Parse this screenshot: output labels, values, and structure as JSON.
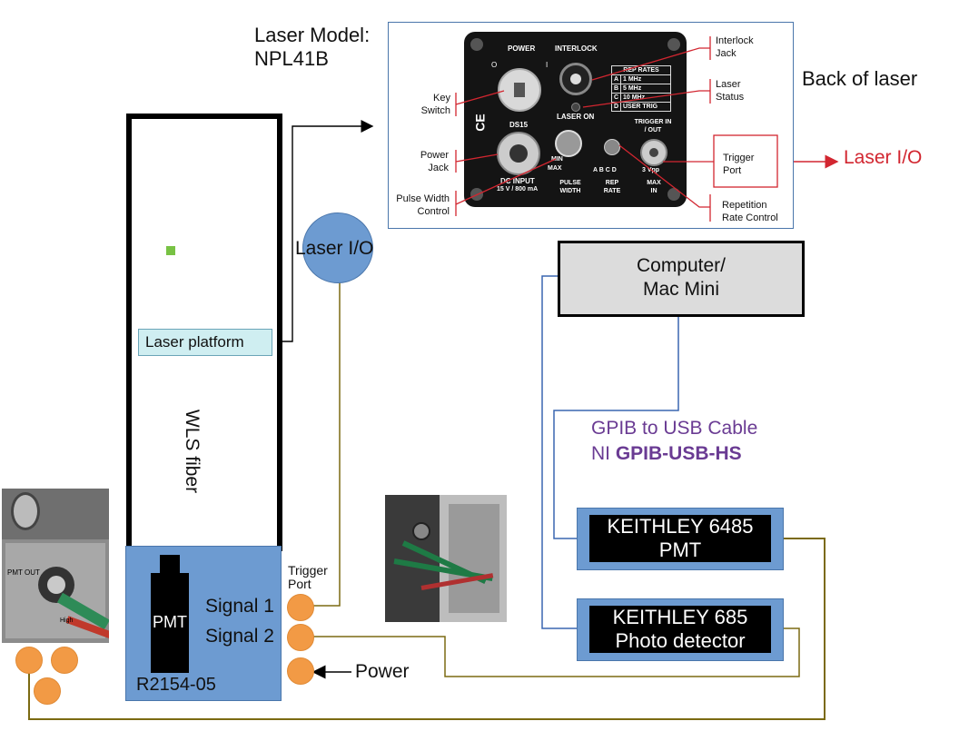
{
  "laser_model": {
    "line1": "Laser Model:",
    "line2": "NPL41B"
  },
  "back_of_laser_title": "Back of laser",
  "laser_panel": {
    "power": "POWER",
    "interlock": "INTERLOCK",
    "laser_on": "LASER ON",
    "ds15": "DS15",
    "o": "O",
    "i": "I",
    "dc_input": "DC INPUT",
    "dc_rating": "15 V / 800 mA",
    "min": "MIN",
    "max": "MAX",
    "pulse_width": "PULSE WIDTH",
    "rep_rate": "REP RATE",
    "rep_letters": "A  B  C  D",
    "trigger": "TRIGGER IN / OUT",
    "vpp": "3 Vpp",
    "max_in": "MAX IN",
    "rep_rates_title": "REP RATES",
    "rep_rates": [
      {
        "k": "A",
        "v": "1 MHz"
      },
      {
        "k": "B",
        "v": "5 MHz"
      },
      {
        "k": "C",
        "v": "10 MHz"
      },
      {
        "k": "D",
        "v": "USER TRIG"
      }
    ],
    "ce": "CE"
  },
  "annotations": {
    "interlock_jack": [
      "Interlock",
      "Jack"
    ],
    "laser_status": [
      "Laser",
      "Status"
    ],
    "key_switch": [
      "Key",
      "Switch"
    ],
    "power_jack": [
      "Power",
      "Jack"
    ],
    "pulse_width_control": [
      "Pulse Width",
      "Control"
    ],
    "trigger_port": [
      "Trigger",
      "Port"
    ],
    "repetition_rate_control": [
      "Repetition",
      "Rate Control"
    ]
  },
  "laser_io_red": "Laser I/O",
  "laser_io_circle": "Laser I/O",
  "laser_platform": "Laser platform",
  "wls_fiber": "WLS fiber",
  "pmt_label": "PMT",
  "pmt_model": "R2154-05",
  "signal1": "Signal 1",
  "signal2": "Signal 2",
  "trigger_port": [
    "Trigger",
    "Port"
  ],
  "power": "Power",
  "computer": [
    "Computer/",
    "Mac Mini"
  ],
  "gpib": {
    "line1": "GPIB to USB Cable",
    "line2_prefix": "NI ",
    "line2_bold": "GPIB-USB-HS"
  },
  "keithley_6485": [
    "KEITHLEY 6485",
    "PMT"
  ],
  "keithley_685": [
    "KEITHLEY 685",
    "Photo detector"
  ],
  "photo_left": {
    "pmt_out": "PMT OUT",
    "high": "High"
  },
  "colors": {
    "box_blue": "#6d9bd1",
    "light_blue_box": "#cfeef1",
    "computer_gray": "#dcdcdc",
    "olive_wire": "#7b6a12",
    "blue_wire": "#3a66b0",
    "green_fiber": "#78c244",
    "orange_connector": "#f29a45",
    "red_annotation": "#d22630",
    "gpib_purple": "#6a3b93"
  }
}
